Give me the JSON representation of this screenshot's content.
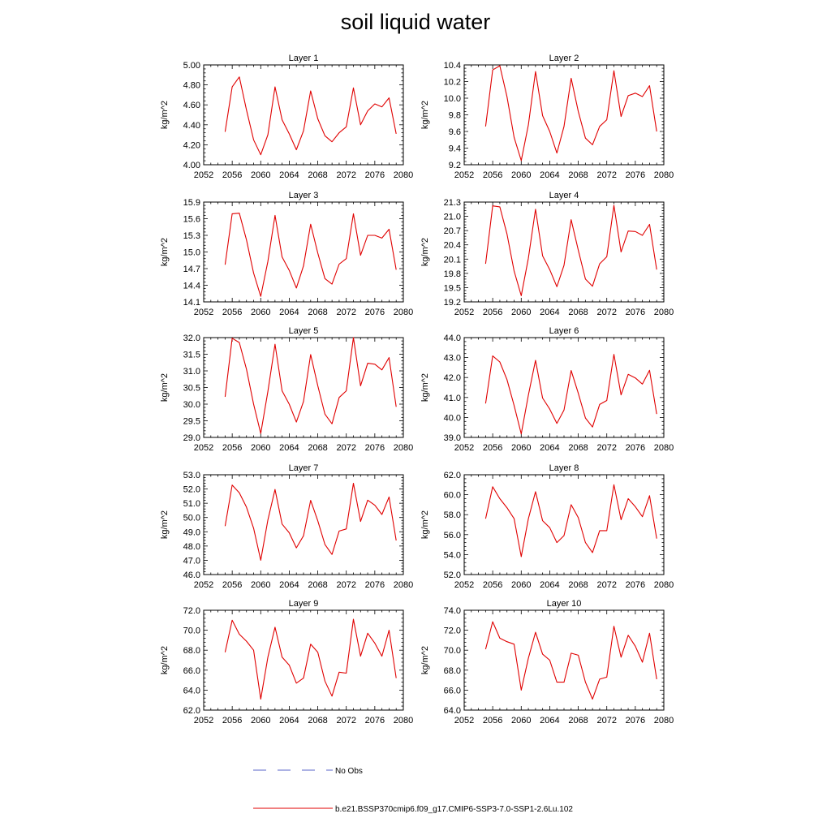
{
  "title": "soil liquid water",
  "legend": {
    "obs_label": "No Obs",
    "obs_color": "#5a64c8",
    "model_label": "b.e21.BSSP370cmip6.f09_g17.CMIP6-SSP3-7.0-SSP1-2.6Lu.102",
    "model_color": "#e00000"
  },
  "chart_data": [
    {
      "type": "line",
      "title": "Layer 1",
      "ylabel": "kg/m^2",
      "xlim": [
        2052,
        2080
      ],
      "xticks": [
        2052,
        2056,
        2060,
        2064,
        2068,
        2072,
        2076,
        2080
      ],
      "ylim": [
        4.0,
        5.0
      ],
      "yticks": [
        "4.00",
        "4.20",
        "4.40",
        "4.60",
        "4.80",
        "5.00"
      ],
      "x": [
        2055,
        2056,
        2057,
        2058,
        2059,
        2060,
        2061,
        2062,
        2063,
        2064,
        2065,
        2066,
        2067,
        2068,
        2069,
        2070,
        2071,
        2072,
        2073,
        2074,
        2075,
        2076,
        2077,
        2078,
        2079
      ],
      "series": [
        {
          "values": [
            4.33,
            4.78,
            4.88,
            4.55,
            4.25,
            4.1,
            4.3,
            4.78,
            4.45,
            4.31,
            4.15,
            4.34,
            4.74,
            4.46,
            4.29,
            4.23,
            4.32,
            4.38,
            4.77,
            4.4,
            4.54,
            4.61,
            4.58,
            4.67,
            4.31
          ]
        }
      ]
    },
    {
      "type": "line",
      "title": "Layer 2",
      "ylabel": "kg/m^2",
      "xlim": [
        2052,
        2080
      ],
      "xticks": [
        2052,
        2056,
        2060,
        2064,
        2068,
        2072,
        2076,
        2080
      ],
      "ylim": [
        9.2,
        10.4
      ],
      "yticks": [
        "9.2",
        "9.4",
        "9.6",
        "9.8",
        "10.0",
        "10.2",
        "10.4"
      ],
      "x": [
        2055,
        2056,
        2057,
        2058,
        2059,
        2060,
        2061,
        2062,
        2063,
        2064,
        2065,
        2066,
        2067,
        2068,
        2069,
        2070,
        2071,
        2072,
        2073,
        2074,
        2075,
        2076,
        2077,
        2078,
        2079
      ],
      "series": [
        {
          "values": [
            9.66,
            10.34,
            10.39,
            10.02,
            9.53,
            9.25,
            9.68,
            10.32,
            9.79,
            9.6,
            9.34,
            9.66,
            10.24,
            9.84,
            9.52,
            9.44,
            9.66,
            9.74,
            10.33,
            9.78,
            10.03,
            10.06,
            10.02,
            10.15,
            9.6
          ]
        }
      ]
    },
    {
      "type": "line",
      "title": "Layer 3",
      "ylabel": "kg/m^2",
      "xlim": [
        2052,
        2080
      ],
      "xticks": [
        2052,
        2056,
        2060,
        2064,
        2068,
        2072,
        2076,
        2080
      ],
      "ylim": [
        14.1,
        15.9
      ],
      "yticks": [
        "14.1",
        "14.4",
        "14.7",
        "15.0",
        "15.3",
        "15.6",
        "15.9"
      ],
      "x": [
        2055,
        2056,
        2057,
        2058,
        2059,
        2060,
        2061,
        2062,
        2063,
        2064,
        2065,
        2066,
        2067,
        2068,
        2069,
        2070,
        2071,
        2072,
        2073,
        2074,
        2075,
        2076,
        2077,
        2078,
        2079
      ],
      "series": [
        {
          "values": [
            14.77,
            15.69,
            15.7,
            15.22,
            14.62,
            14.2,
            14.83,
            15.66,
            14.91,
            14.67,
            14.35,
            14.75,
            15.5,
            14.98,
            14.52,
            14.42,
            14.78,
            14.88,
            15.69,
            14.94,
            15.3,
            15.3,
            15.25,
            15.41,
            14.68
          ]
        }
      ]
    },
    {
      "type": "line",
      "title": "Layer 4",
      "ylabel": "kg/m^2",
      "xlim": [
        2052,
        2080
      ],
      "xticks": [
        2052,
        2056,
        2060,
        2064,
        2068,
        2072,
        2076,
        2080
      ],
      "ylim": [
        19.2,
        21.3
      ],
      "yticks": [
        "19.2",
        "19.5",
        "19.8",
        "20.1",
        "20.4",
        "20.7",
        "21.0",
        "21.3"
      ],
      "x": [
        2055,
        2056,
        2057,
        2058,
        2059,
        2060,
        2061,
        2062,
        2063,
        2064,
        2065,
        2066,
        2067,
        2068,
        2069,
        2070,
        2071,
        2072,
        2073,
        2074,
        2075,
        2076,
        2077,
        2078,
        2079
      ],
      "series": [
        {
          "values": [
            20.0,
            21.22,
            21.2,
            20.63,
            19.85,
            19.33,
            20.12,
            21.15,
            20.17,
            19.88,
            19.52,
            19.97,
            20.93,
            20.29,
            19.68,
            19.53,
            20.0,
            20.15,
            21.23,
            20.25,
            20.69,
            20.68,
            20.6,
            20.83,
            19.88
          ]
        }
      ]
    },
    {
      "type": "line",
      "title": "Layer 5",
      "ylabel": "kg/m^2",
      "xlim": [
        2052,
        2080
      ],
      "xticks": [
        2052,
        2056,
        2060,
        2064,
        2068,
        2072,
        2076,
        2080
      ],
      "ylim": [
        29.0,
        32.0
      ],
      "yticks": [
        "29.0",
        "29.5",
        "30.0",
        "30.5",
        "31.0",
        "31.5",
        "32.0"
      ],
      "x": [
        2055,
        2056,
        2057,
        2058,
        2059,
        2060,
        2061,
        2062,
        2063,
        2064,
        2065,
        2066,
        2067,
        2068,
        2069,
        2070,
        2071,
        2072,
        2073,
        2074,
        2075,
        2076,
        2077,
        2078,
        2079
      ],
      "series": [
        {
          "values": [
            30.22,
            31.98,
            31.85,
            31.05,
            30.0,
            29.12,
            30.38,
            31.8,
            30.4,
            30.0,
            29.46,
            30.08,
            31.49,
            30.55,
            29.7,
            29.41,
            30.2,
            30.4,
            32.0,
            30.55,
            31.23,
            31.2,
            31.03,
            31.4,
            29.92
          ]
        }
      ]
    },
    {
      "type": "line",
      "title": "Layer 6",
      "ylabel": "kg/m^2",
      "xlim": [
        2052,
        2080
      ],
      "xticks": [
        2052,
        2056,
        2060,
        2064,
        2068,
        2072,
        2076,
        2080
      ],
      "ylim": [
        39.0,
        44.0
      ],
      "yticks": [
        "39.0",
        "40.0",
        "41.0",
        "42.0",
        "43.0",
        "44.0"
      ],
      "x": [
        2055,
        2056,
        2057,
        2058,
        2059,
        2060,
        2061,
        2062,
        2063,
        2064,
        2065,
        2066,
        2067,
        2068,
        2069,
        2070,
        2071,
        2072,
        2073,
        2074,
        2075,
        2076,
        2077,
        2078,
        2079
      ],
      "series": [
        {
          "values": [
            40.7,
            43.08,
            42.78,
            41.9,
            40.6,
            39.18,
            41.12,
            42.86,
            40.97,
            40.42,
            39.7,
            40.37,
            42.35,
            41.21,
            39.97,
            39.52,
            40.65,
            40.85,
            43.16,
            41.13,
            42.16,
            41.98,
            41.67,
            42.36,
            40.17
          ]
        }
      ]
    },
    {
      "type": "line",
      "title": "Layer 7",
      "ylabel": "kg/m^2",
      "xlim": [
        2052,
        2080
      ],
      "xticks": [
        2052,
        2056,
        2060,
        2064,
        2068,
        2072,
        2076,
        2080
      ],
      "ylim": [
        46.0,
        53.0
      ],
      "yticks": [
        "46.0",
        "47.0",
        "48.0",
        "49.0",
        "50.0",
        "51.0",
        "52.0",
        "53.0"
      ],
      "x": [
        2055,
        2056,
        2057,
        2058,
        2059,
        2060,
        2061,
        2062,
        2063,
        2064,
        2065,
        2066,
        2067,
        2068,
        2069,
        2070,
        2071,
        2072,
        2073,
        2074,
        2075,
        2076,
        2077,
        2078,
        2079
      ],
      "series": [
        {
          "values": [
            49.4,
            52.28,
            51.73,
            50.73,
            49.25,
            47.0,
            49.83,
            51.97,
            49.54,
            48.93,
            47.87,
            48.72,
            51.2,
            49.77,
            48.11,
            47.41,
            49.05,
            49.2,
            52.4,
            49.72,
            51.22,
            50.86,
            50.21,
            51.44,
            48.39
          ]
        }
      ]
    },
    {
      "type": "line",
      "title": "Layer 8",
      "ylabel": "kg/m^2",
      "xlim": [
        2052,
        2080
      ],
      "xticks": [
        2052,
        2056,
        2060,
        2064,
        2068,
        2072,
        2076,
        2080
      ],
      "ylim": [
        52.0,
        62.0
      ],
      "yticks": [
        "52.0",
        "54.0",
        "56.0",
        "58.0",
        "60.0",
        "62.0"
      ],
      "x": [
        2055,
        2056,
        2057,
        2058,
        2059,
        2060,
        2061,
        2062,
        2063,
        2064,
        2065,
        2066,
        2067,
        2068,
        2069,
        2070,
        2071,
        2072,
        2073,
        2074,
        2075,
        2076,
        2077,
        2078,
        2079
      ],
      "series": [
        {
          "values": [
            57.6,
            60.8,
            59.6,
            58.7,
            57.6,
            53.8,
            57.6,
            60.3,
            57.4,
            56.7,
            55.2,
            55.9,
            59.0,
            57.7,
            55.2,
            54.2,
            56.4,
            56.4,
            61.0,
            57.5,
            59.6,
            58.8,
            57.8,
            59.9,
            55.6
          ]
        }
      ]
    },
    {
      "type": "line",
      "title": "Layer 9",
      "ylabel": "kg/m^2",
      "xlim": [
        2052,
        2080
      ],
      "xticks": [
        2052,
        2056,
        2060,
        2064,
        2068,
        2072,
        2076,
        2080
      ],
      "ylim": [
        62.0,
        72.0
      ],
      "yticks": [
        "62.0",
        "64.0",
        "66.0",
        "68.0",
        "70.0",
        "72.0"
      ],
      "x": [
        2055,
        2056,
        2057,
        2058,
        2059,
        2060,
        2061,
        2062,
        2063,
        2064,
        2065,
        2066,
        2067,
        2068,
        2069,
        2070,
        2071,
        2072,
        2073,
        2074,
        2075,
        2076,
        2077,
        2078,
        2079
      ],
      "series": [
        {
          "values": [
            67.8,
            71.0,
            69.6,
            68.9,
            68.0,
            63.1,
            67.3,
            70.3,
            67.3,
            66.5,
            64.7,
            65.2,
            68.6,
            67.8,
            64.9,
            63.4,
            65.8,
            65.7,
            71.1,
            67.4,
            69.7,
            68.7,
            67.4,
            70.0,
            65.2
          ]
        }
      ]
    },
    {
      "type": "line",
      "title": "Layer 10",
      "ylabel": "kg/m^2",
      "xlim": [
        2052,
        2080
      ],
      "xticks": [
        2052,
        2056,
        2060,
        2064,
        2068,
        2072,
        2076,
        2080
      ],
      "ylim": [
        64.0,
        74.0
      ],
      "yticks": [
        "64.0",
        "66.0",
        "68.0",
        "70.0",
        "72.0",
        "74.0"
      ],
      "x": [
        2055,
        2056,
        2057,
        2058,
        2059,
        2060,
        2061,
        2062,
        2063,
        2064,
        2065,
        2066,
        2067,
        2068,
        2069,
        2070,
        2071,
        2072,
        2073,
        2074,
        2075,
        2076,
        2077,
        2078,
        2079
      ],
      "series": [
        {
          "values": [
            70.1,
            72.85,
            71.2,
            70.85,
            70.6,
            66.0,
            69.2,
            71.8,
            69.6,
            69.0,
            66.8,
            66.8,
            69.7,
            69.5,
            66.8,
            65.1,
            67.1,
            67.3,
            72.4,
            69.3,
            71.5,
            70.4,
            68.8,
            71.7,
            67.1
          ]
        }
      ]
    }
  ]
}
